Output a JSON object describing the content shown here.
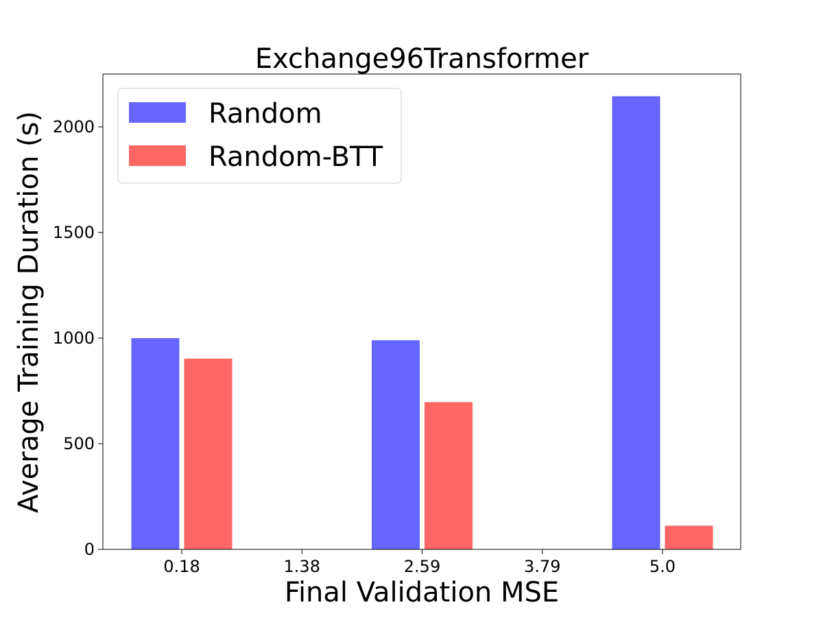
{
  "chart_data": {
    "type": "bar",
    "title": "Exchange96Transformer",
    "xlabel": "Final Validation MSE",
    "ylabel": "Average Training Duration (s)",
    "categories": [
      "0.18",
      "1.38",
      "2.59",
      "3.79",
      "5.0"
    ],
    "series": [
      {
        "name": "Random",
        "color": "#6666ff",
        "values": [
          1000,
          null,
          990,
          null,
          2145
        ]
      },
      {
        "name": "Random-BTT",
        "color": "#ff6666",
        "values": [
          903,
          null,
          697,
          null,
          112
        ]
      }
    ],
    "ylim": [
      0,
      2250
    ],
    "yticks": [
      0,
      500,
      1000,
      1500,
      2000
    ],
    "grid": false,
    "legend": {
      "position": "top-left"
    }
  }
}
